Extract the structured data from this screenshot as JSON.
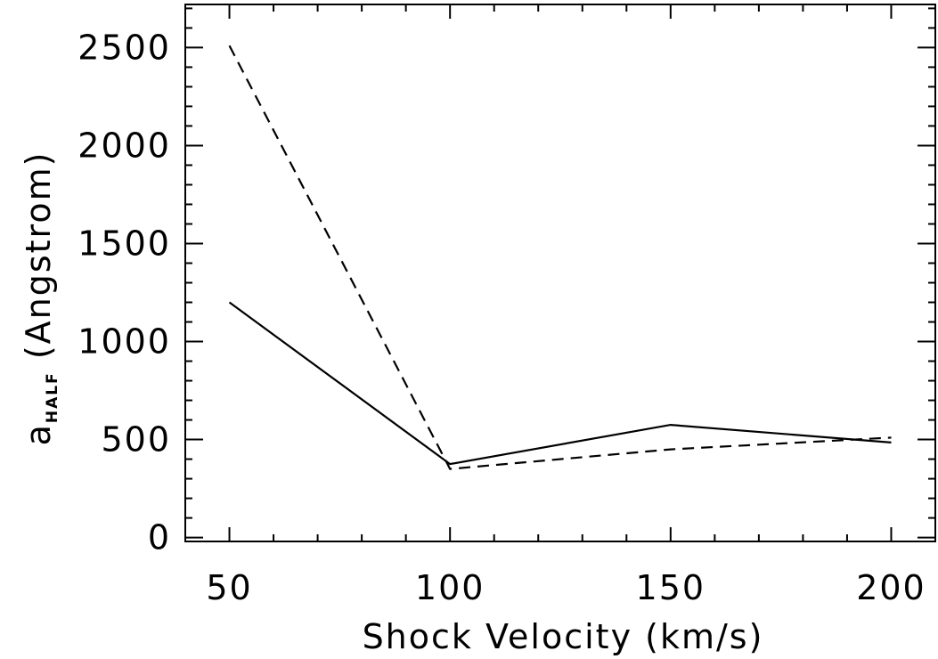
{
  "chart_data": {
    "type": "line",
    "title": "",
    "xlabel": "Shock Velocity (km/s)",
    "ylabel": {
      "symbol": "a",
      "subscript": "HALF",
      "rest": " (Angstrom)"
    },
    "xlim": [
      40,
      210
    ],
    "ylim": [
      -20,
      2720
    ],
    "x_ticks": [
      50,
      100,
      150,
      200
    ],
    "x_tick_labels": [
      "50",
      "100",
      "150",
      "200"
    ],
    "x_minor_step": 10,
    "y_ticks": [
      0,
      500,
      1000,
      1500,
      2000,
      2500
    ],
    "y_tick_labels": [
      "0",
      "500",
      "1000",
      "1500",
      "2000",
      "2500"
    ],
    "y_minor_step": 100,
    "grid": false,
    "series": [
      {
        "style": "solid",
        "color": "#000000",
        "x": [
          50,
          100,
          150,
          200
        ],
        "y": [
          1200,
          375,
          575,
          485
        ]
      },
      {
        "style": "dashed",
        "color": "#000000",
        "x": [
          50,
          100,
          150,
          200
        ],
        "y": [
          2510,
          350,
          450,
          510
        ]
      }
    ]
  }
}
